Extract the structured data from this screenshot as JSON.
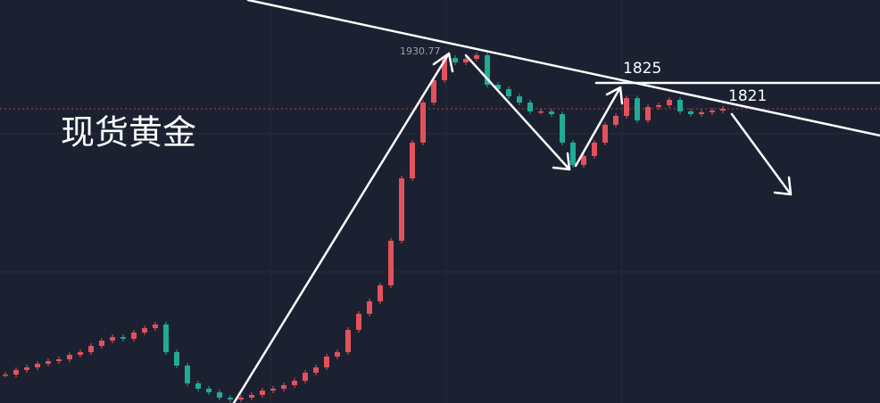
{
  "chart_data": {
    "type": "candlestick",
    "title": "现货黄金",
    "ylim": [
      1650,
      1960
    ],
    "values": [
      1671.9,
      1675.4,
      1677.4,
      1680.2,
      1682.2,
      1683.6,
      1687.0,
      1689.1,
      1693.9,
      1698.0,
      1700.7,
      1699.4,
      1704.2,
      1707.6,
      1710.4,
      1689.1,
      1678.8,
      1665.1,
      1661.0,
      1658.2,
      1654.1,
      1652.7,
      1654.1,
      1656.2,
      1659.6,
      1661.0,
      1663.7,
      1667.1,
      1673.3,
      1677.4,
      1685.7,
      1689.1,
      1706.2,
      1718.6,
      1728.2,
      1740.5,
      1774.8,
      1822.8,
      1850.3,
      1881.1,
      1898.3,
      1915.4,
      1912.0,
      1914.7,
      1917.5,
      1894.8,
      1891.4,
      1885.9,
      1881.1,
      1874.3,
      1874.3,
      1872.2,
      1850.3,
      1833.1,
      1840.0,
      1850.3,
      1864.0,
      1870.8,
      1884.5,
      1867.4,
      1877.7,
      1879.1,
      1883.2,
      1874.3,
      1872.2,
      1873.6,
      1874.9,
      1876.3
    ],
    "up_color": "#e2525c",
    "down_color": "#22ab94",
    "annotations": [
      1930.77,
      1825,
      1821
    ],
    "grid": true
  }
}
